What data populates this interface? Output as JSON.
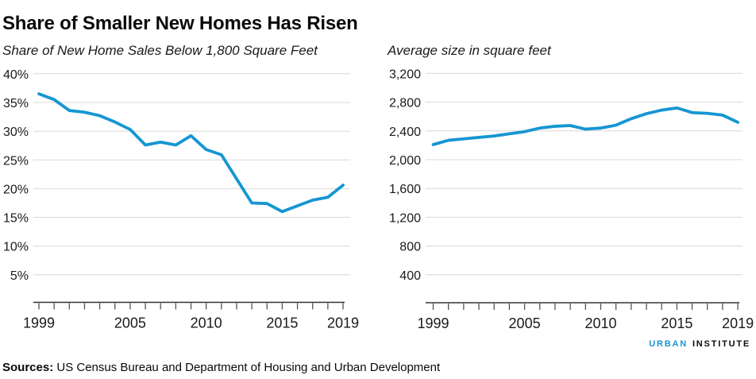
{
  "header": {
    "title": "Share of Smaller New Homes Has Risen"
  },
  "chart_data": [
    {
      "type": "line",
      "subtitle": "Share of New Home Sales Below 1,800 Square Feet",
      "x": [
        1999,
        2000,
        2001,
        2002,
        2003,
        2004,
        2005,
        2006,
        2007,
        2008,
        2009,
        2010,
        2011,
        2012,
        2013,
        2014,
        2015,
        2016,
        2017,
        2018,
        2019
      ],
      "values": [
        36.5,
        35.5,
        33.6,
        33.3,
        32.7,
        31.6,
        30.3,
        27.6,
        28.1,
        27.6,
        29.2,
        26.8,
        25.9,
        21.7,
        17.5,
        17.4,
        16.0,
        17.0,
        18.0,
        18.5,
        20.6
      ],
      "unit": "percent",
      "ylim": [
        0,
        40
      ],
      "yticks": [
        40,
        35,
        30,
        25,
        20,
        15,
        10,
        5
      ],
      "ytick_labels": [
        "40%",
        "35%",
        "30%",
        "25%",
        "20%",
        "15%",
        "10%",
        "5%"
      ],
      "xticks": [
        1999,
        2005,
        2010,
        2015,
        2019
      ],
      "xtick_labels": [
        "1999",
        "2005",
        "2010",
        "2015",
        "2019"
      ],
      "grid": true,
      "legend": "none",
      "line_color": "#1696d2"
    },
    {
      "type": "line",
      "subtitle": "Average size in square feet",
      "x": [
        1999,
        2000,
        2001,
        2002,
        2003,
        2004,
        2005,
        2006,
        2007,
        2008,
        2009,
        2010,
        2011,
        2012,
        2013,
        2014,
        2015,
        2016,
        2017,
        2018,
        2019
      ],
      "values": [
        2210,
        2270,
        2290,
        2310,
        2330,
        2360,
        2390,
        2440,
        2465,
        2475,
        2425,
        2440,
        2480,
        2570,
        2640,
        2690,
        2720,
        2655,
        2645,
        2620,
        2520
      ],
      "unit": "square_feet",
      "ylim": [
        0,
        3200
      ],
      "yticks": [
        3200,
        2800,
        2400,
        2000,
        1600,
        1200,
        800,
        400
      ],
      "ytick_labels": [
        "3,200",
        "2,800",
        "2,400",
        "2,000",
        "1,600",
        "1,200",
        "800",
        "400"
      ],
      "xticks": [
        1999,
        2005,
        2010,
        2015,
        2019
      ],
      "xtick_labels": [
        "1999",
        "2005",
        "2010",
        "2015",
        "2019"
      ],
      "grid": true,
      "legend": "none",
      "line_color": "#1696d2"
    }
  ],
  "footer": {
    "sources_label": "Sources:",
    "sources_text": " US Census Bureau and Department of Housing and Urban Development",
    "logo": {
      "urban": "URBAN",
      "institute": "INSTITUTE"
    }
  },
  "colors": {
    "line": "#1696d2",
    "logo_blue": "#1696d2",
    "grid": "#d8d8d8",
    "axis": "#333333",
    "tick": "#555555",
    "text": "#1a1a1a"
  }
}
